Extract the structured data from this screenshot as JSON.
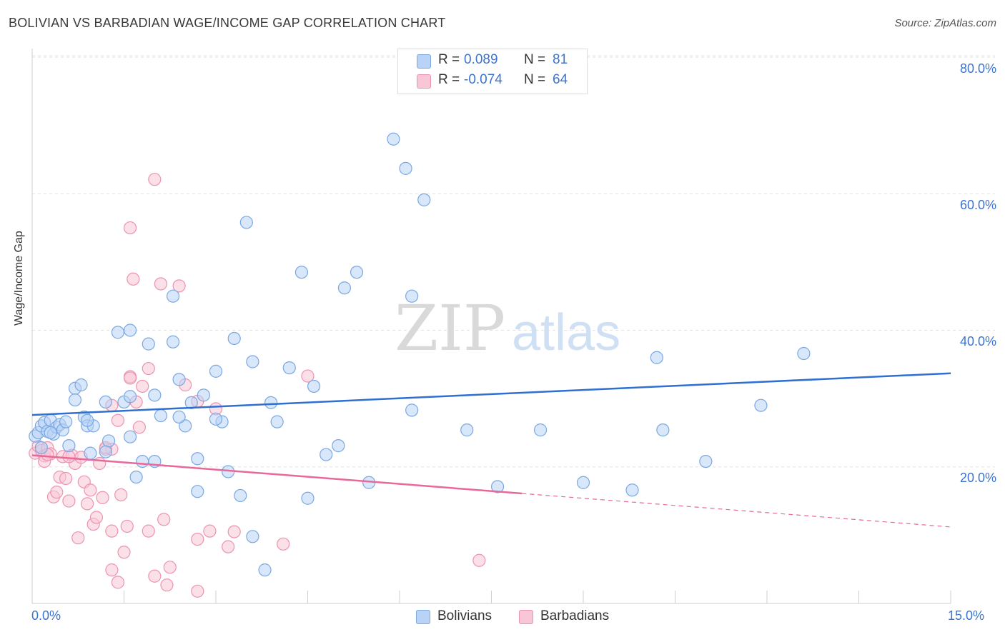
{
  "title": "BOLIVIAN VS BARBADIAN WAGE/INCOME GAP CORRELATION CHART",
  "source": "Source: ZipAtlas.com",
  "watermark": {
    "zip": "ZIP",
    "atlas": "atlas"
  },
  "colors": {
    "blue_fill": "#b8d3f5",
    "blue_stroke": "#7ba7e2",
    "blue_line": "#2f6fd0",
    "pink_fill": "#f9c6d6",
    "pink_stroke": "#ec93b1",
    "pink_line": "#e8689a",
    "tick_text": "#3b73d0",
    "grid": "#e3e3e3"
  },
  "legend_top": [
    {
      "r_label": "R = ",
      "r_value": "0.089",
      "n_label": "N = ",
      "n_value": "81",
      "color": "blue"
    },
    {
      "r_label": "R = ",
      "r_value": "-0.074",
      "n_label": "N = ",
      "n_value": "64",
      "color": "pink"
    }
  ],
  "chart_data": {
    "type": "scatter",
    "title": "BOLIVIAN VS BARBADIAN WAGE/INCOME GAP CORRELATION CHART",
    "xlabel": "",
    "ylabel": "Wage/Income Gap",
    "xlim": [
      0,
      15
    ],
    "ylim": [
      0,
      80
    ],
    "x_tick_labels": [
      "0.0%",
      "15.0%"
    ],
    "y_ticks": [
      20,
      40,
      60,
      80
    ],
    "y_tick_labels": [
      "20.0%",
      "40.0%",
      "60.0%",
      "80.0%"
    ],
    "grid": true,
    "legend_position": "bottom-center",
    "series": [
      {
        "name": "Bolivians",
        "color": "blue",
        "trend": {
          "x0": 0,
          "y0": 27.6,
          "x1": 15,
          "y1": 33.7,
          "dashed_from": null
        },
        "points": [
          [
            0.05,
            24.5
          ],
          [
            0.1,
            25
          ],
          [
            0.15,
            26
          ],
          [
            0.2,
            26.5
          ],
          [
            0.25,
            25.2
          ],
          [
            0.3,
            26.8
          ],
          [
            0.35,
            24.8
          ],
          [
            0.4,
            25.8
          ],
          [
            0.45,
            26.2
          ],
          [
            0.5,
            25.4
          ],
          [
            0.55,
            26.6
          ],
          [
            0.6,
            23.1
          ],
          [
            0.7,
            31.5
          ],
          [
            0.7,
            29.8
          ],
          [
            0.85,
            27.3
          ],
          [
            0.9,
            26
          ],
          [
            0.95,
            22
          ],
          [
            1.0,
            26
          ],
          [
            1.2,
            29.5
          ],
          [
            1.25,
            23.8
          ],
          [
            1.5,
            29.5
          ],
          [
            1.6,
            30.3
          ],
          [
            1.7,
            18.5
          ],
          [
            1.8,
            20.8
          ],
          [
            1.9,
            38
          ],
          [
            2.0,
            30.5
          ],
          [
            2.1,
            27.5
          ],
          [
            2.3,
            38.3
          ],
          [
            2.3,
            45
          ],
          [
            2.4,
            32.8
          ],
          [
            2.5,
            26
          ],
          [
            2.6,
            29.4
          ],
          [
            2.7,
            16.4
          ],
          [
            2.8,
            30.5
          ],
          [
            3.0,
            34
          ],
          [
            3.1,
            26.6
          ],
          [
            3.2,
            19.3
          ],
          [
            3.3,
            38.8
          ],
          [
            3.5,
            55.8
          ],
          [
            3.6,
            35.4
          ],
          [
            3.6,
            9.8
          ],
          [
            3.8,
            4.9
          ],
          [
            3.9,
            29.4
          ],
          [
            4.2,
            34.5
          ],
          [
            4.4,
            48.5
          ],
          [
            4.5,
            15.4
          ],
          [
            4.6,
            31.8
          ],
          [
            4.8,
            21.8
          ],
          [
            5.0,
            23.1
          ],
          [
            5.1,
            46.2
          ],
          [
            5.3,
            48.5
          ],
          [
            5.5,
            17.7
          ],
          [
            5.9,
            68
          ],
          [
            6.1,
            63.7
          ],
          [
            6.2,
            45
          ],
          [
            6.2,
            28.3
          ],
          [
            6.4,
            59.1
          ],
          [
            7.1,
            25.4
          ],
          [
            7.6,
            17.1
          ],
          [
            8.3,
            25.4
          ],
          [
            9.0,
            17.7
          ],
          [
            9.8,
            16.6
          ],
          [
            10.2,
            36
          ],
          [
            10.3,
            25.4
          ],
          [
            11.0,
            20.8
          ],
          [
            11.9,
            29
          ],
          [
            12.6,
            36.6
          ],
          [
            0.8,
            32
          ],
          [
            1.4,
            39.7
          ],
          [
            3.0,
            27
          ],
          [
            2.0,
            20.8
          ],
          [
            1.2,
            22.2
          ],
          [
            0.3,
            25
          ],
          [
            2.7,
            21.2
          ],
          [
            0.15,
            22.8
          ],
          [
            1.6,
            24.4
          ],
          [
            3.4,
            15.8
          ],
          [
            4.0,
            26.6
          ],
          [
            2.4,
            27.3
          ],
          [
            0.9,
            26.8
          ],
          [
            1.6,
            40
          ]
        ]
      },
      {
        "name": "Barbadians",
        "color": "pink",
        "trend": {
          "x0": 0,
          "y0": 21.7,
          "x1": 15,
          "y1": 11.2,
          "dashed_from": 8.0
        },
        "points": [
          [
            0.05,
            22
          ],
          [
            0.1,
            23
          ],
          [
            0.15,
            22.4
          ],
          [
            0.2,
            21.6
          ],
          [
            0.25,
            22.8
          ],
          [
            0.3,
            21.9
          ],
          [
            0.35,
            15.6
          ],
          [
            0.4,
            16.3
          ],
          [
            0.45,
            18.5
          ],
          [
            0.5,
            21.5
          ],
          [
            0.55,
            18.3
          ],
          [
            0.6,
            15
          ],
          [
            0.65,
            21.7
          ],
          [
            0.7,
            20.5
          ],
          [
            0.75,
            9.6
          ],
          [
            0.8,
            21.4
          ],
          [
            0.85,
            17.8
          ],
          [
            0.9,
            14.6
          ],
          [
            0.95,
            16.6
          ],
          [
            1.0,
            11.6
          ],
          [
            1.05,
            12.6
          ],
          [
            1.1,
            20.5
          ],
          [
            1.15,
            15.5
          ],
          [
            1.2,
            22.6
          ],
          [
            1.3,
            4.9
          ],
          [
            1.3,
            10.6
          ],
          [
            1.4,
            3.1
          ],
          [
            1.45,
            15.9
          ],
          [
            1.5,
            7.5
          ],
          [
            1.55,
            11.3
          ],
          [
            1.6,
            55
          ],
          [
            1.65,
            47.5
          ],
          [
            1.7,
            29.5
          ],
          [
            1.75,
            25.8
          ],
          [
            1.8,
            31.8
          ],
          [
            1.9,
            34.4
          ],
          [
            1.9,
            10.6
          ],
          [
            2.0,
            62.1
          ],
          [
            2.0,
            4
          ],
          [
            2.1,
            46.8
          ],
          [
            2.15,
            12.3
          ],
          [
            2.2,
            2.7
          ],
          [
            2.25,
            5.3
          ],
          [
            2.4,
            46.5
          ],
          [
            2.5,
            32
          ],
          [
            2.7,
            29.6
          ],
          [
            2.7,
            1.8
          ],
          [
            2.7,
            9.4
          ],
          [
            2.9,
            10.6
          ],
          [
            3.0,
            28.5
          ],
          [
            3.2,
            8.3
          ],
          [
            3.3,
            10.5
          ],
          [
            4.1,
            8.7
          ],
          [
            4.5,
            33.3
          ],
          [
            1.6,
            33.2
          ],
          [
            1.3,
            22.6
          ],
          [
            0.2,
            20.8
          ],
          [
            1.4,
            26.8
          ],
          [
            0.25,
            21.8
          ],
          [
            0.6,
            21.5
          ],
          [
            1.2,
            22.8
          ],
          [
            1.6,
            33
          ],
          [
            1.3,
            29
          ],
          [
            7.3,
            6.3
          ]
        ]
      }
    ]
  }
}
